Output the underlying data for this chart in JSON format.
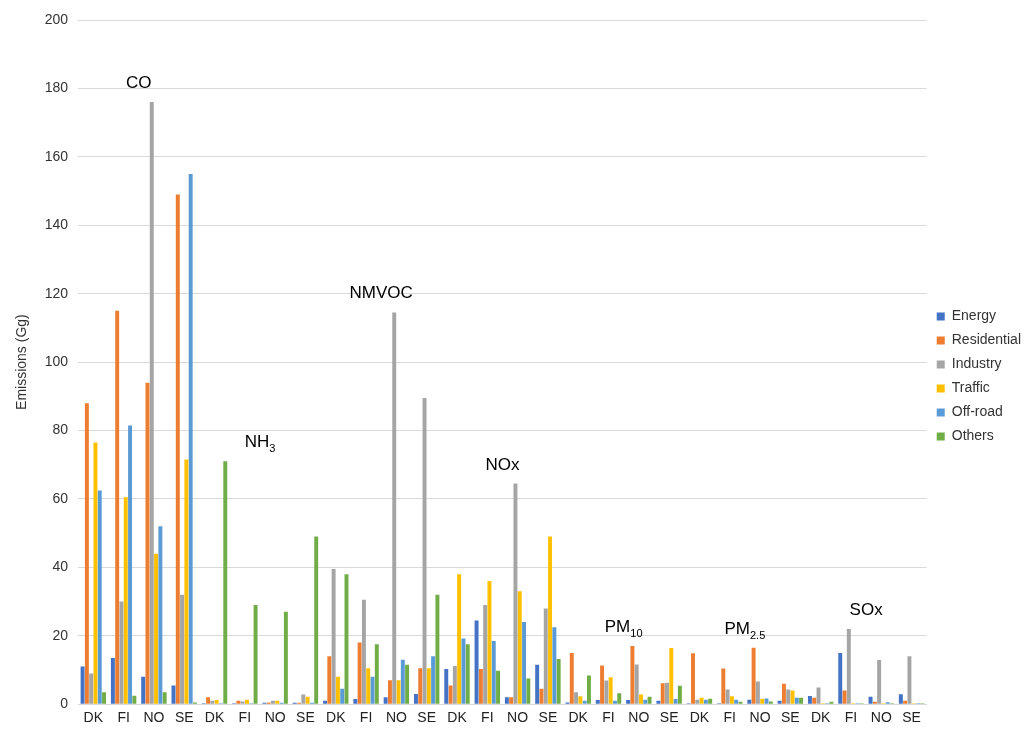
{
  "chart_data": {
    "type": "bar",
    "ylabel": "Emissions (Gg)",
    "categories": [
      "DK",
      "FI",
      "NO",
      "SE",
      "DK",
      "FI",
      "NO",
      "SE",
      "DK",
      "FI",
      "NO",
      "SE",
      "DK",
      "FI",
      "NO",
      "SE",
      "DK",
      "FI",
      "NO",
      "SE",
      "DK",
      "FI",
      "NO",
      "SE",
      "DK",
      "FI",
      "NO",
      "SE"
    ],
    "series": [
      {
        "name": "Energy",
        "color": "#4472c4",
        "values": [
          11,
          13.5,
          8,
          5.5,
          0.3,
          0.3,
          0.4,
          0.4,
          1,
          1.5,
          2,
          3,
          10.3,
          24.5,
          2,
          11.5,
          0.5,
          1.2,
          1.2,
          1,
          0.3,
          0.3,
          1.3,
          1,
          2.4,
          15,
          2.2,
          2.9
        ]
      },
      {
        "name": "Residential",
        "color": "#ed7d31",
        "values": [
          88,
          115,
          94,
          149,
          2,
          1,
          0.5,
          0.4,
          14,
          18,
          7,
          10.5,
          5.5,
          10.3,
          2,
          4.5,
          15,
          11.3,
          17,
          6.1,
          14.9,
          10.4,
          16.5,
          6,
          1.9,
          4,
          0.7,
          1
        ]
      },
      {
        "name": "Industry",
        "color": "#a5a5a5",
        "values": [
          9,
          30,
          176,
          32,
          1,
          0.8,
          1,
          2.8,
          39.5,
          30.5,
          114.5,
          89.5,
          11.2,
          29,
          64.5,
          28,
          3.5,
          6.9,
          11.6,
          6.3,
          1.3,
          4.3,
          6.6,
          4.3,
          4.9,
          22,
          12.9,
          14
        ]
      },
      {
        "name": "Traffic",
        "color": "#ffc000",
        "values": [
          76.5,
          60.5,
          44,
          71.5,
          1.2,
          1.3,
          1,
          2.2,
          8,
          10.5,
          7,
          10.5,
          38,
          36,
          33,
          49,
          2.3,
          7.9,
          2.8,
          16.4,
          1.9,
          2.3,
          1.6,
          4,
          0.3,
          0.3,
          0.3,
          0.3
        ]
      },
      {
        "name": "Off-road",
        "color": "#5b9bd5",
        "values": [
          62.5,
          81.5,
          52,
          155,
          0.3,
          0.3,
          0.4,
          0.4,
          4.5,
          8,
          13,
          14,
          19.2,
          18.5,
          24,
          22.5,
          1,
          1,
          1.3,
          1.5,
          1.3,
          1.3,
          1.7,
          1.9,
          0.3,
          0.3,
          0.6,
          0.3
        ]
      },
      {
        "name": "Others",
        "color": "#70ad47",
        "values": [
          3.5,
          2.5,
          3.5,
          0.5,
          71,
          29,
          27,
          49,
          38,
          17.5,
          11.5,
          32,
          17.5,
          9.8,
          7.5,
          13.2,
          8.4,
          3.2,
          2.2,
          5.4,
          1.6,
          0.7,
          0.8,
          1.9,
          0.7,
          0.3,
          0.3,
          0.3
        ]
      }
    ],
    "annotations": [
      "CO",
      "NH$_{3}$",
      "NMVOC",
      "NOx",
      "PM$_{10}$",
      "PM$_{2.5}$",
      "SOx"
    ],
    "ylim": [
      0,
      200
    ],
    "yticks": [
      0,
      20,
      40,
      60,
      80,
      100,
      120,
      140,
      160,
      180,
      200
    ],
    "grid": "y",
    "legend": "right"
  }
}
